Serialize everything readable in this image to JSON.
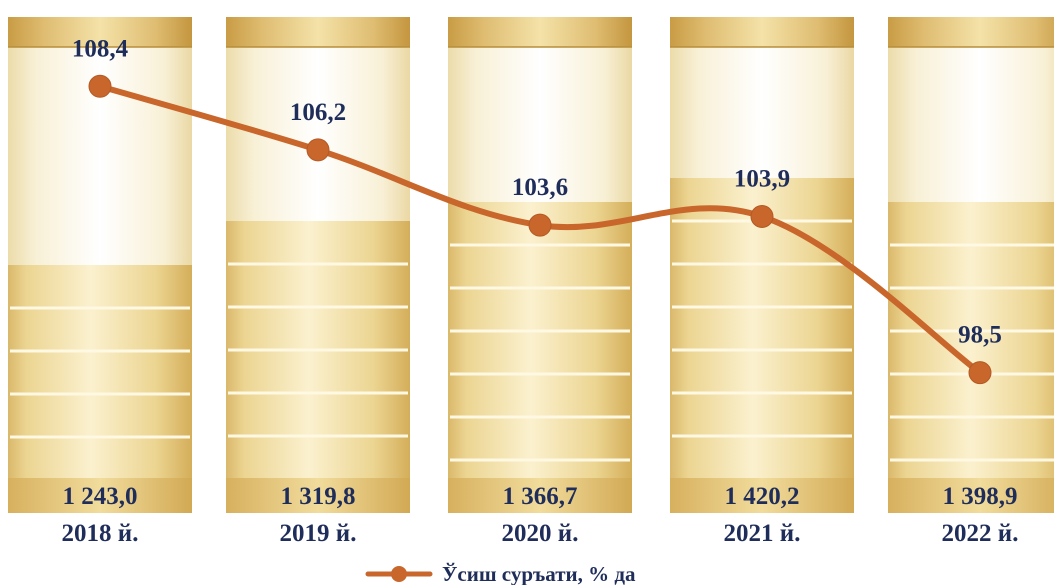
{
  "chart_data": {
    "type": "bar",
    "categories": [
      "2018 й.",
      "2019 й.",
      "2020 й.",
      "2021 й.",
      "2022 й."
    ],
    "series": [
      {
        "values": [
          "1 243,0",
          "1 319,8",
          "1 366,7",
          "1 420,2",
          "1 398,9"
        ],
        "numeric": [
          1243.0,
          1319.8,
          1366.7,
          1420.2,
          1398.9
        ]
      },
      {
        "name": "Ўсиш суръати, % да",
        "type": "line",
        "values": [
          "108,4",
          "106,2",
          "103,6",
          "103,9",
          "98,5"
        ],
        "numeric": [
          108.4,
          106.2,
          103.6,
          103.9,
          98.5
        ]
      }
    ],
    "ylim": [
      0,
      1600
    ],
    "line_ylim": [
      96,
      110
    ],
    "legend_position": "bottom-center",
    "colors": {
      "line": "#c8662c",
      "label": "#1f2d5a",
      "bar_fill": "#edd692",
      "bar_top": "#ddb868"
    }
  }
}
